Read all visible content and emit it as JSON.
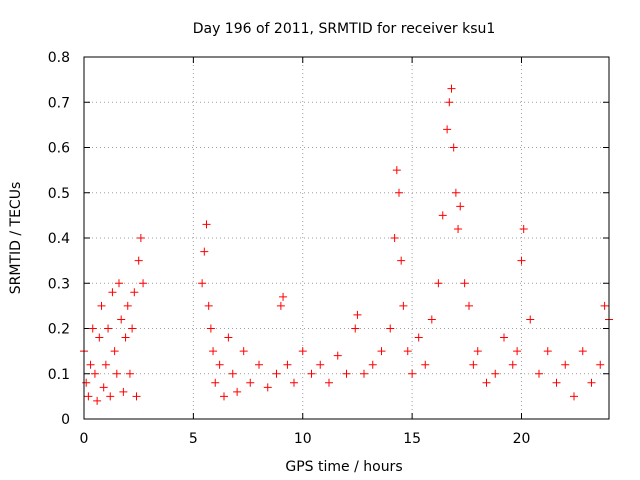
{
  "chart_data": {
    "type": "scatter",
    "title": "Day 196 of 2011, SRMTID for receiver ksu1",
    "xlabel": "GPS time / hours",
    "ylabel": "SRMTID / TECUs",
    "xlim": [
      0,
      24
    ],
    "ylim": [
      0,
      0.8
    ],
    "xticks": [
      0,
      5,
      10,
      15,
      20
    ],
    "xtick_labels": [
      "0",
      "5",
      "10",
      "15",
      "20"
    ],
    "yticks": [
      0,
      0.1,
      0.2,
      0.3,
      0.4,
      0.5,
      0.6,
      0.7,
      0.8
    ],
    "ytick_labels": [
      "0",
      "0.1",
      "0.2",
      "0.3",
      "0.4",
      "0.5",
      "0.6",
      "0.7",
      "0.8"
    ],
    "grid": true,
    "marker": "plus",
    "series": [
      {
        "name": "ksu1",
        "color": "#ff0000",
        "x": [
          0.0,
          0.1,
          0.2,
          0.3,
          0.4,
          0.5,
          0.6,
          0.7,
          0.8,
          0.9,
          1.0,
          1.1,
          1.2,
          1.3,
          1.4,
          1.5,
          1.6,
          1.7,
          1.8,
          1.9,
          2.0,
          2.1,
          2.2,
          2.3,
          2.4,
          2.5,
          2.6,
          2.7,
          5.4,
          5.5,
          5.6,
          5.7,
          5.8,
          5.9,
          6.0,
          6.2,
          6.4,
          6.6,
          6.8,
          7.0,
          7.3,
          7.6,
          8.0,
          8.4,
          8.8,
          9.0,
          9.1,
          9.3,
          9.6,
          10.0,
          10.4,
          10.8,
          11.2,
          11.6,
          12.0,
          12.4,
          12.5,
          12.8,
          13.2,
          13.6,
          14.0,
          14.2,
          14.3,
          14.4,
          14.5,
          14.6,
          14.8,
          15.0,
          15.3,
          15.6,
          15.9,
          16.2,
          16.4,
          16.6,
          16.7,
          16.8,
          16.9,
          17.0,
          17.1,
          17.2,
          17.4,
          17.6,
          17.8,
          18.0,
          18.4,
          18.8,
          19.2,
          19.6,
          19.8,
          20.0,
          20.1,
          20.4,
          20.8,
          21.2,
          21.6,
          22.0,
          22.4,
          22.8,
          23.2,
          23.6,
          23.8,
          24.0
        ],
        "y": [
          0.15,
          0.08,
          0.05,
          0.12,
          0.2,
          0.1,
          0.04,
          0.18,
          0.25,
          0.07,
          0.12,
          0.2,
          0.05,
          0.28,
          0.15,
          0.1,
          0.3,
          0.22,
          0.06,
          0.18,
          0.25,
          0.1,
          0.2,
          0.28,
          0.05,
          0.35,
          0.4,
          0.3,
          0.3,
          0.37,
          0.43,
          0.25,
          0.2,
          0.15,
          0.08,
          0.12,
          0.05,
          0.18,
          0.1,
          0.06,
          0.15,
          0.08,
          0.12,
          0.07,
          0.1,
          0.25,
          0.27,
          0.12,
          0.08,
          0.15,
          0.1,
          0.12,
          0.08,
          0.14,
          0.1,
          0.2,
          0.23,
          0.1,
          0.12,
          0.15,
          0.2,
          0.4,
          0.55,
          0.5,
          0.35,
          0.25,
          0.15,
          0.1,
          0.18,
          0.12,
          0.22,
          0.3,
          0.45,
          0.64,
          0.7,
          0.73,
          0.6,
          0.5,
          0.42,
          0.47,
          0.3,
          0.25,
          0.12,
          0.15,
          0.08,
          0.1,
          0.18,
          0.12,
          0.15,
          0.35,
          0.42,
          0.22,
          0.1,
          0.15,
          0.08,
          0.12,
          0.05,
          0.15,
          0.08,
          0.12,
          0.25,
          0.22
        ]
      }
    ]
  }
}
